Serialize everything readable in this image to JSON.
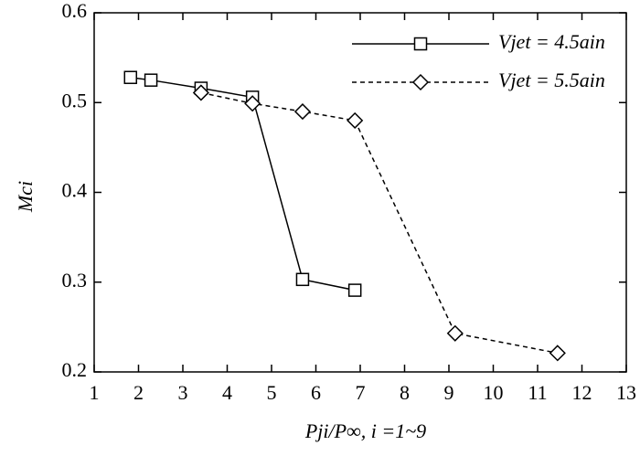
{
  "chart_data": {
    "type": "line",
    "x_label": "Pji/P∞, i =1~9",
    "y_label": "Mci",
    "xlim": [
      1,
      13
    ],
    "xticks": [
      1,
      2,
      3,
      4,
      5,
      6,
      7,
      8,
      9,
      10,
      11,
      12,
      13
    ],
    "ylim": [
      0.2,
      0.6
    ],
    "yticks": [
      0.2,
      0.3,
      0.4,
      0.5,
      0.6
    ],
    "grid": false,
    "legend": "upper right",
    "series": [
      {
        "name": "Vjet = 4.5ain",
        "color": "#000000",
        "dash": "solid",
        "marker": "square",
        "x": [
          1.82,
          2.28,
          3.41,
          4.57,
          5.7,
          6.88
        ],
        "values": [
          0.528,
          0.525,
          0.516,
          0.506,
          0.303,
          0.291
        ]
      },
      {
        "name": "Vjet = 5.5ain",
        "color": "#000000",
        "dash": "dashed",
        "marker": "diamond",
        "x": [
          3.41,
          4.57,
          5.7,
          6.88,
          9.14,
          11.45
        ],
        "values": [
          0.511,
          0.499,
          0.49,
          0.48,
          0.243,
          0.221
        ]
      }
    ]
  }
}
